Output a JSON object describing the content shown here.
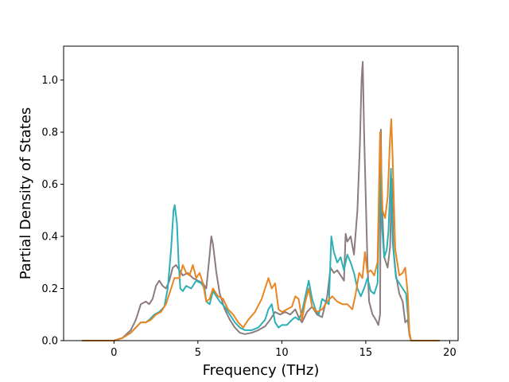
{
  "chart_data": {
    "type": "line",
    "xlabel": "Frequency (THz)",
    "ylabel": "Partial Density of States",
    "xlim": [
      -3,
      20.5
    ],
    "ylim": [
      0,
      1.13
    ],
    "x_ticks": [
      0,
      5,
      10,
      15,
      20
    ],
    "y_ticks": [
      0.0,
      0.2,
      0.4,
      0.6,
      0.8,
      1.0
    ],
    "x_tick_labels": [
      "0",
      "5",
      "10",
      "15",
      "20"
    ],
    "y_tick_labels": [
      "0.0",
      "0.2",
      "0.4",
      "0.6",
      "0.8",
      "1.0"
    ],
    "grid": false,
    "legend": "none",
    "series": [
      {
        "color": "#8c7b7f",
        "points": [
          [
            -1.9,
            0
          ],
          [
            0,
            0
          ],
          [
            0.5,
            0.01
          ],
          [
            1,
            0.04
          ],
          [
            1.3,
            0.08
          ],
          [
            1.6,
            0.14
          ],
          [
            1.9,
            0.15
          ],
          [
            2.1,
            0.14
          ],
          [
            2.3,
            0.16
          ],
          [
            2.5,
            0.21
          ],
          [
            2.7,
            0.23
          ],
          [
            2.9,
            0.21
          ],
          [
            3.1,
            0.2
          ],
          [
            3.3,
            0.23
          ],
          [
            3.5,
            0.28
          ],
          [
            3.7,
            0.29
          ],
          [
            3.9,
            0.27
          ],
          [
            4.1,
            0.25
          ],
          [
            4.4,
            0.26
          ],
          [
            4.7,
            0.24
          ],
          [
            5,
            0.23
          ],
          [
            5.3,
            0.22
          ],
          [
            5.5,
            0.2
          ],
          [
            5.7,
            0.33
          ],
          [
            5.8,
            0.4
          ],
          [
            5.9,
            0.37
          ],
          [
            6.1,
            0.26
          ],
          [
            6.3,
            0.18
          ],
          [
            6.6,
            0.12
          ],
          [
            6.9,
            0.08
          ],
          [
            7.2,
            0.05
          ],
          [
            7.5,
            0.03
          ],
          [
            7.8,
            0.025
          ],
          [
            8.2,
            0.03
          ],
          [
            8.6,
            0.04
          ],
          [
            9,
            0.055
          ],
          [
            9.3,
            0.08
          ],
          [
            9.6,
            0.11
          ],
          [
            9.9,
            0.1
          ],
          [
            10.2,
            0.11
          ],
          [
            10.5,
            0.1
          ],
          [
            10.8,
            0.12
          ],
          [
            11,
            0.09
          ],
          [
            11.2,
            0.07
          ],
          [
            11.5,
            0.11
          ],
          [
            11.8,
            0.13
          ],
          [
            12.1,
            0.1
          ],
          [
            12.4,
            0.09
          ],
          [
            12.7,
            0.17
          ],
          [
            12.9,
            0.28
          ],
          [
            13.1,
            0.26
          ],
          [
            13.3,
            0.27
          ],
          [
            13.5,
            0.25
          ],
          [
            13.7,
            0.23
          ],
          [
            13.8,
            0.41
          ],
          [
            13.9,
            0.38
          ],
          [
            14.1,
            0.4
          ],
          [
            14.3,
            0.33
          ],
          [
            14.5,
            0.5
          ],
          [
            14.65,
            0.75
          ],
          [
            14.75,
            1.0
          ],
          [
            14.82,
            1.07
          ],
          [
            14.9,
            0.8
          ],
          [
            15,
            0.55
          ],
          [
            15.1,
            0.3
          ],
          [
            15.2,
            0.15
          ],
          [
            15.4,
            0.1
          ],
          [
            15.6,
            0.08
          ],
          [
            15.75,
            0.06
          ],
          [
            15.85,
            0.1
          ],
          [
            15.9,
            0.81
          ],
          [
            15.95,
            0.55
          ],
          [
            16.1,
            0.32
          ],
          [
            16.3,
            0.28
          ],
          [
            16.45,
            0.36
          ],
          [
            16.55,
            0.62
          ],
          [
            16.65,
            0.35
          ],
          [
            16.8,
            0.25
          ],
          [
            17,
            0.18
          ],
          [
            17.2,
            0.15
          ],
          [
            17.35,
            0.07
          ],
          [
            17.5,
            0.08
          ],
          [
            17.6,
            0.02
          ],
          [
            17.7,
            0
          ],
          [
            19.4,
            0
          ]
        ]
      },
      {
        "color": "#2bb1b5",
        "points": [
          [
            -1.9,
            0
          ],
          [
            0,
            0
          ],
          [
            0.5,
            0.01
          ],
          [
            1,
            0.03
          ],
          [
            1.3,
            0.05
          ],
          [
            1.6,
            0.07
          ],
          [
            1.9,
            0.07
          ],
          [
            2.1,
            0.08
          ],
          [
            2.4,
            0.1
          ],
          [
            2.7,
            0.11
          ],
          [
            3,
            0.13
          ],
          [
            3.2,
            0.2
          ],
          [
            3.4,
            0.35
          ],
          [
            3.55,
            0.5
          ],
          [
            3.62,
            0.52
          ],
          [
            3.75,
            0.45
          ],
          [
            3.85,
            0.3
          ],
          [
            3.95,
            0.2
          ],
          [
            4.1,
            0.19
          ],
          [
            4.3,
            0.21
          ],
          [
            4.6,
            0.2
          ],
          [
            4.9,
            0.23
          ],
          [
            5.2,
            0.22
          ],
          [
            5.4,
            0.2
          ],
          [
            5.5,
            0.15
          ],
          [
            5.7,
            0.14
          ],
          [
            5.9,
            0.19
          ],
          [
            6.1,
            0.17
          ],
          [
            6.3,
            0.15
          ],
          [
            6.6,
            0.13
          ],
          [
            6.9,
            0.1
          ],
          [
            7.2,
            0.07
          ],
          [
            7.5,
            0.05
          ],
          [
            7.8,
            0.04
          ],
          [
            8.2,
            0.04
          ],
          [
            8.6,
            0.05
          ],
          [
            9,
            0.08
          ],
          [
            9.2,
            0.12
          ],
          [
            9.4,
            0.14
          ],
          [
            9.6,
            0.07
          ],
          [
            9.8,
            0.05
          ],
          [
            10,
            0.06
          ],
          [
            10.3,
            0.06
          ],
          [
            10.6,
            0.08
          ],
          [
            10.8,
            0.09
          ],
          [
            11,
            0.08
          ],
          [
            11.2,
            0.11
          ],
          [
            11.4,
            0.17
          ],
          [
            11.6,
            0.23
          ],
          [
            11.8,
            0.16
          ],
          [
            12,
            0.12
          ],
          [
            12.2,
            0.1
          ],
          [
            12.4,
            0.16
          ],
          [
            12.6,
            0.15
          ],
          [
            12.8,
            0.14
          ],
          [
            12.95,
            0.4
          ],
          [
            13.1,
            0.34
          ],
          [
            13.3,
            0.3
          ],
          [
            13.5,
            0.32
          ],
          [
            13.7,
            0.27
          ],
          [
            13.9,
            0.33
          ],
          [
            14.1,
            0.3
          ],
          [
            14.3,
            0.26
          ],
          [
            14.5,
            0.2
          ],
          [
            14.7,
            0.17
          ],
          [
            14.9,
            0.2
          ],
          [
            15.1,
            0.24
          ],
          [
            15.3,
            0.19
          ],
          [
            15.5,
            0.18
          ],
          [
            15.7,
            0.22
          ],
          [
            15.8,
            0.5
          ],
          [
            15.85,
            0.77
          ],
          [
            15.95,
            0.45
          ],
          [
            16.1,
            0.32
          ],
          [
            16.25,
            0.35
          ],
          [
            16.35,
            0.42
          ],
          [
            16.5,
            0.66
          ],
          [
            16.6,
            0.38
          ],
          [
            16.8,
            0.24
          ],
          [
            17,
            0.22
          ],
          [
            17.2,
            0.2
          ],
          [
            17.4,
            0.18
          ],
          [
            17.6,
            0.03
          ],
          [
            17.7,
            0
          ],
          [
            19.4,
            0
          ]
        ]
      },
      {
        "color": "#e98522",
        "points": [
          [
            -1.9,
            0
          ],
          [
            0,
            0
          ],
          [
            0.5,
            0.01
          ],
          [
            1,
            0.03
          ],
          [
            1.3,
            0.05
          ],
          [
            1.6,
            0.07
          ],
          [
            1.9,
            0.07
          ],
          [
            2.2,
            0.08
          ],
          [
            2.5,
            0.1
          ],
          [
            2.8,
            0.11
          ],
          [
            3.1,
            0.14
          ],
          [
            3.4,
            0.2
          ],
          [
            3.6,
            0.24
          ],
          [
            3.9,
            0.24
          ],
          [
            4.1,
            0.29
          ],
          [
            4.3,
            0.26
          ],
          [
            4.5,
            0.25
          ],
          [
            4.7,
            0.29
          ],
          [
            4.9,
            0.24
          ],
          [
            5.1,
            0.26
          ],
          [
            5.3,
            0.22
          ],
          [
            5.5,
            0.15
          ],
          [
            5.7,
            0.16
          ],
          [
            5.9,
            0.2
          ],
          [
            6.2,
            0.17
          ],
          [
            6.5,
            0.16
          ],
          [
            6.8,
            0.12
          ],
          [
            7.1,
            0.1
          ],
          [
            7.4,
            0.07
          ],
          [
            7.7,
            0.05
          ],
          [
            8,
            0.08
          ],
          [
            8.4,
            0.11
          ],
          [
            8.8,
            0.16
          ],
          [
            9,
            0.2
          ],
          [
            9.2,
            0.24
          ],
          [
            9.4,
            0.2
          ],
          [
            9.6,
            0.22
          ],
          [
            9.8,
            0.12
          ],
          [
            10,
            0.11
          ],
          [
            10.3,
            0.12
          ],
          [
            10.6,
            0.13
          ],
          [
            10.8,
            0.17
          ],
          [
            11,
            0.16
          ],
          [
            11.2,
            0.08
          ],
          [
            11.4,
            0.15
          ],
          [
            11.6,
            0.2
          ],
          [
            11.8,
            0.13
          ],
          [
            12.1,
            0.11
          ],
          [
            12.4,
            0.12
          ],
          [
            12.7,
            0.15
          ],
          [
            13,
            0.17
          ],
          [
            13.3,
            0.15
          ],
          [
            13.6,
            0.14
          ],
          [
            13.9,
            0.14
          ],
          [
            14.2,
            0.12
          ],
          [
            14.4,
            0.18
          ],
          [
            14.6,
            0.26
          ],
          [
            14.8,
            0.24
          ],
          [
            14.95,
            0.34
          ],
          [
            15.1,
            0.26
          ],
          [
            15.3,
            0.27
          ],
          [
            15.5,
            0.25
          ],
          [
            15.7,
            0.3
          ],
          [
            15.85,
            0.8
          ],
          [
            16,
            0.5
          ],
          [
            16.15,
            0.47
          ],
          [
            16.3,
            0.55
          ],
          [
            16.45,
            0.78
          ],
          [
            16.52,
            0.85
          ],
          [
            16.6,
            0.7
          ],
          [
            16.75,
            0.35
          ],
          [
            17,
            0.25
          ],
          [
            17.2,
            0.26
          ],
          [
            17.35,
            0.28
          ],
          [
            17.5,
            0.18
          ],
          [
            17.6,
            0.03
          ],
          [
            17.7,
            0
          ],
          [
            19.4,
            0
          ]
        ]
      }
    ]
  }
}
